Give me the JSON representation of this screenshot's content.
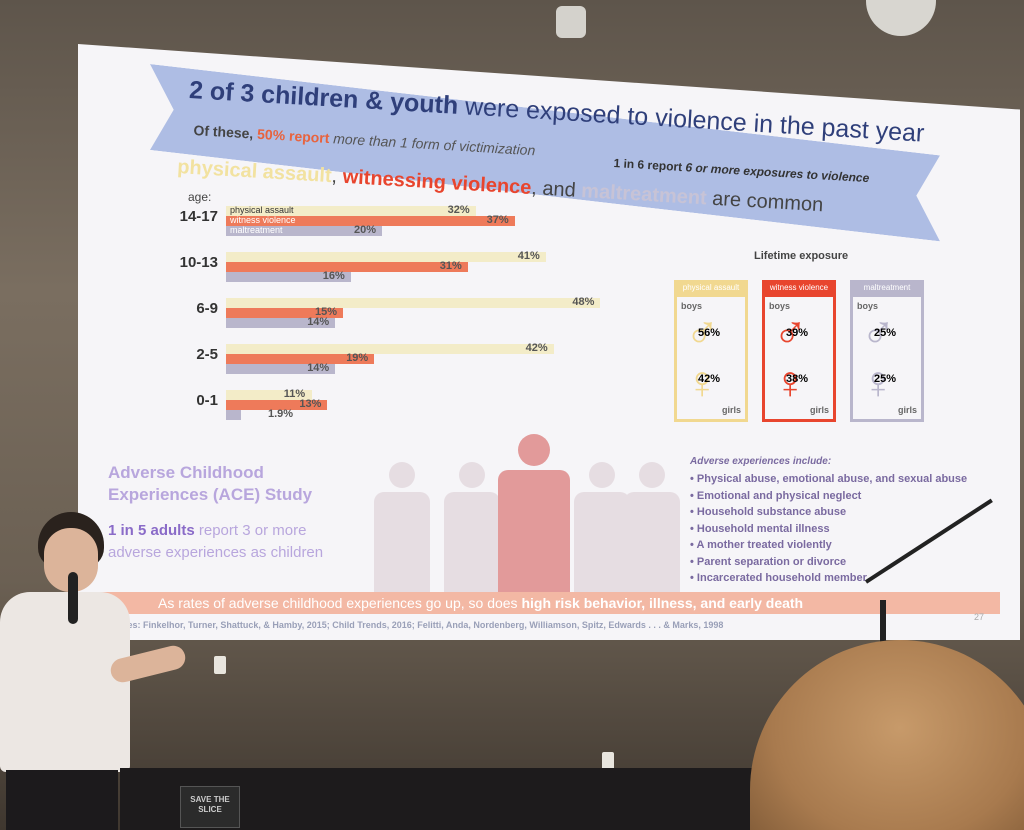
{
  "slide": {
    "title_bold": "2 of 3 children & youth",
    "title_rest": "were exposed to violence in the past year",
    "sub1_prefix": "Of these,",
    "sub1_pct": "50% report",
    "sub1_rest": "more than 1 form of victimization",
    "sub2_bold": "1 in 6 report",
    "sub2_rest": "6 or more exposures to violence",
    "headline": {
      "physical": "physical assault",
      "sep1": ",",
      "witnessing": "witnessing violence",
      "mid": ", and",
      "maltreatment": "maltreatment",
      "end": "are common"
    },
    "age_heading": "age:",
    "legend": {
      "physical": "physical assault",
      "witness": "witness violence",
      "maltreatment": "maltreatment"
    },
    "lifetime": {
      "heading": "Lifetime exposure",
      "cards": [
        {
          "label": "physical assault",
          "boys_label": "boys",
          "boys": "56%",
          "girls": "42%",
          "girls_label": "girls",
          "color": "#f1d890"
        },
        {
          "label": "witness violence",
          "boys_label": "boys",
          "boys": "39%",
          "girls": "38%",
          "girls_label": "girls",
          "color": "#e8452e"
        },
        {
          "label": "maltreatment",
          "boys_label": "boys",
          "boys": "25%",
          "girls": "25%",
          "girls_label": "girls",
          "color": "#b9b6cc"
        }
      ]
    },
    "ace": {
      "title_line1": "Adverse Childhood",
      "title_line2": "Experiences (ACE) Study",
      "stat_bold": "1 in 5 adults",
      "stat_rest1": "report 3 or more",
      "stat_rest2": "adverse experiences as children"
    },
    "adverse": {
      "heading": "Adverse experiences include:",
      "items": [
        "Physical abuse, emotional abuse, and sexual abuse",
        "Emotional and physical neglect",
        "Household substance abuse",
        "Household mental illness",
        "A mother treated violently",
        "Parent separation or divorce",
        "Incarcerated household member"
      ]
    },
    "footer_plain": "As rates of adverse childhood experiences go up, so does",
    "footer_bold": "high risk behavior, illness, and early death",
    "sources": "Sources: Finkelhor, Turner, Shattuck, & Hamby, 2015; Child Trends, 2016; Felitti, Anda, Nordenberg, Williamson, Spitz, Edwards . . . & Marks, 1998",
    "page_number": "27"
  },
  "chart_data": {
    "type": "bar",
    "orientation": "horizontal",
    "categories": [
      "14-17",
      "10-13",
      "6-9",
      "2-5",
      "0-1"
    ],
    "series": [
      {
        "name": "physical assault",
        "color": "#f3ecc8",
        "values": [
          32,
          41,
          48,
          42,
          11
        ],
        "labels": [
          "32%",
          "41%",
          "48%",
          "42%",
          "11%"
        ]
      },
      {
        "name": "witness violence",
        "color": "#ee7a5a",
        "values": [
          37,
          31,
          15,
          19,
          13
        ],
        "labels": [
          "37%",
          "31%",
          "15%",
          "19%",
          "13%"
        ]
      },
      {
        "name": "maltreatment",
        "color": "#b9b6cc",
        "values": [
          20,
          16,
          14,
          14,
          1.9
        ],
        "labels": [
          "20%",
          "16%",
          "14%",
          "14%",
          "1.9%"
        ]
      }
    ],
    "xlim": [
      0,
      50
    ]
  },
  "room": {
    "sign_text_line1": "SAVE THE",
    "sign_text_line2": "SLICE"
  }
}
